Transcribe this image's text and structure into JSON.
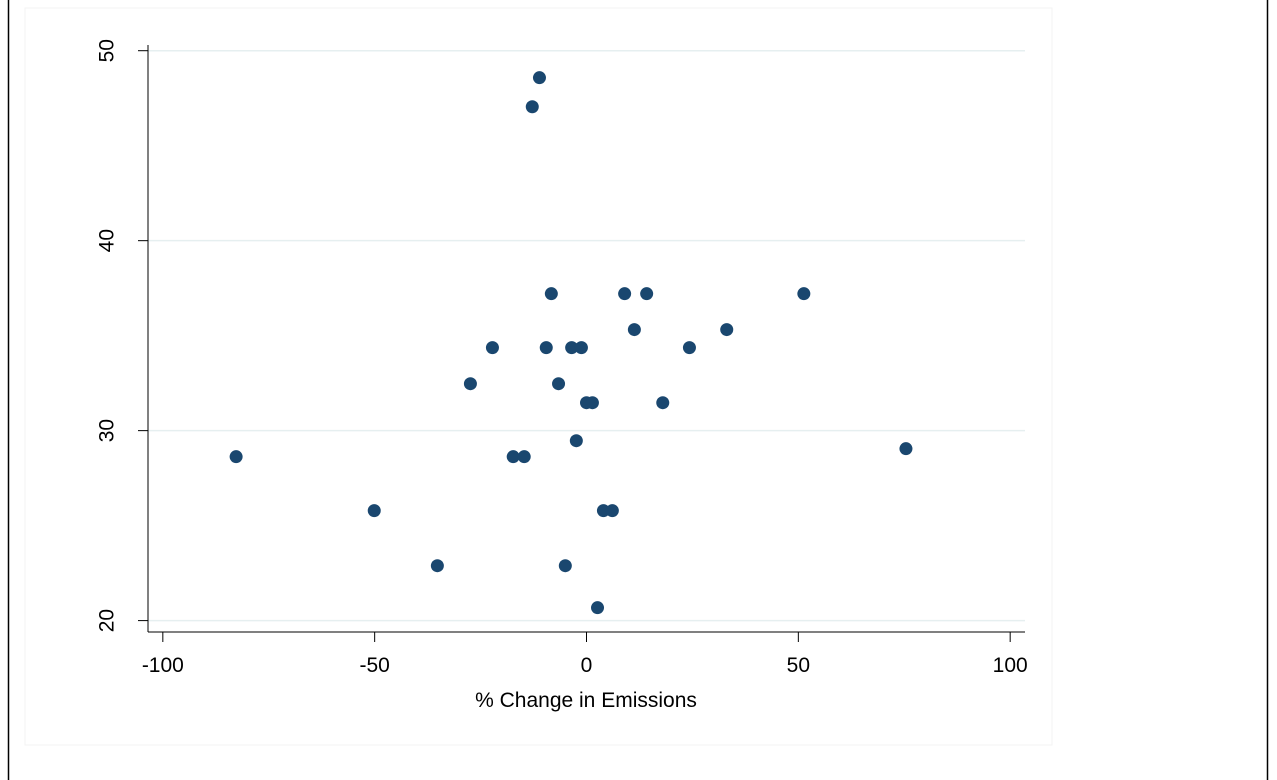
{
  "chart_data": {
    "type": "scatter",
    "x_label": "% Change in Emissions",
    "x": [
      -11.1,
      -12.8,
      -82.7,
      -50.1,
      -35.2,
      -27.4,
      -22.2,
      -17.3,
      -14.7,
      -9.5,
      -8.3,
      -6.6,
      -5.0,
      -3.5,
      -2.4,
      -1.2,
      0.0,
      1.4,
      2.6,
      4.0,
      6.1,
      9.0,
      11.3,
      14.2,
      18.0,
      24.3,
      33.1,
      51.3,
      75.4
    ],
    "y": [
      48.58,
      47.05,
      28.63,
      25.79,
      22.89,
      32.47,
      34.37,
      28.63,
      28.63,
      34.37,
      37.21,
      32.47,
      22.89,
      34.37,
      29.47,
      34.37,
      31.47,
      31.47,
      20.68,
      25.79,
      25.79,
      37.21,
      35.32,
      37.21,
      31.47,
      34.37,
      35.32,
      37.21,
      29.05
    ],
    "color": "#1a476f",
    "xlim": [
      -103.5,
      103.5
    ],
    "ylim": [
      19.4,
      50.3
    ],
    "xticks": [
      -100,
      -50,
      0,
      50,
      100
    ],
    "yticks": [
      20,
      30,
      40,
      50
    ],
    "grid": true
  }
}
